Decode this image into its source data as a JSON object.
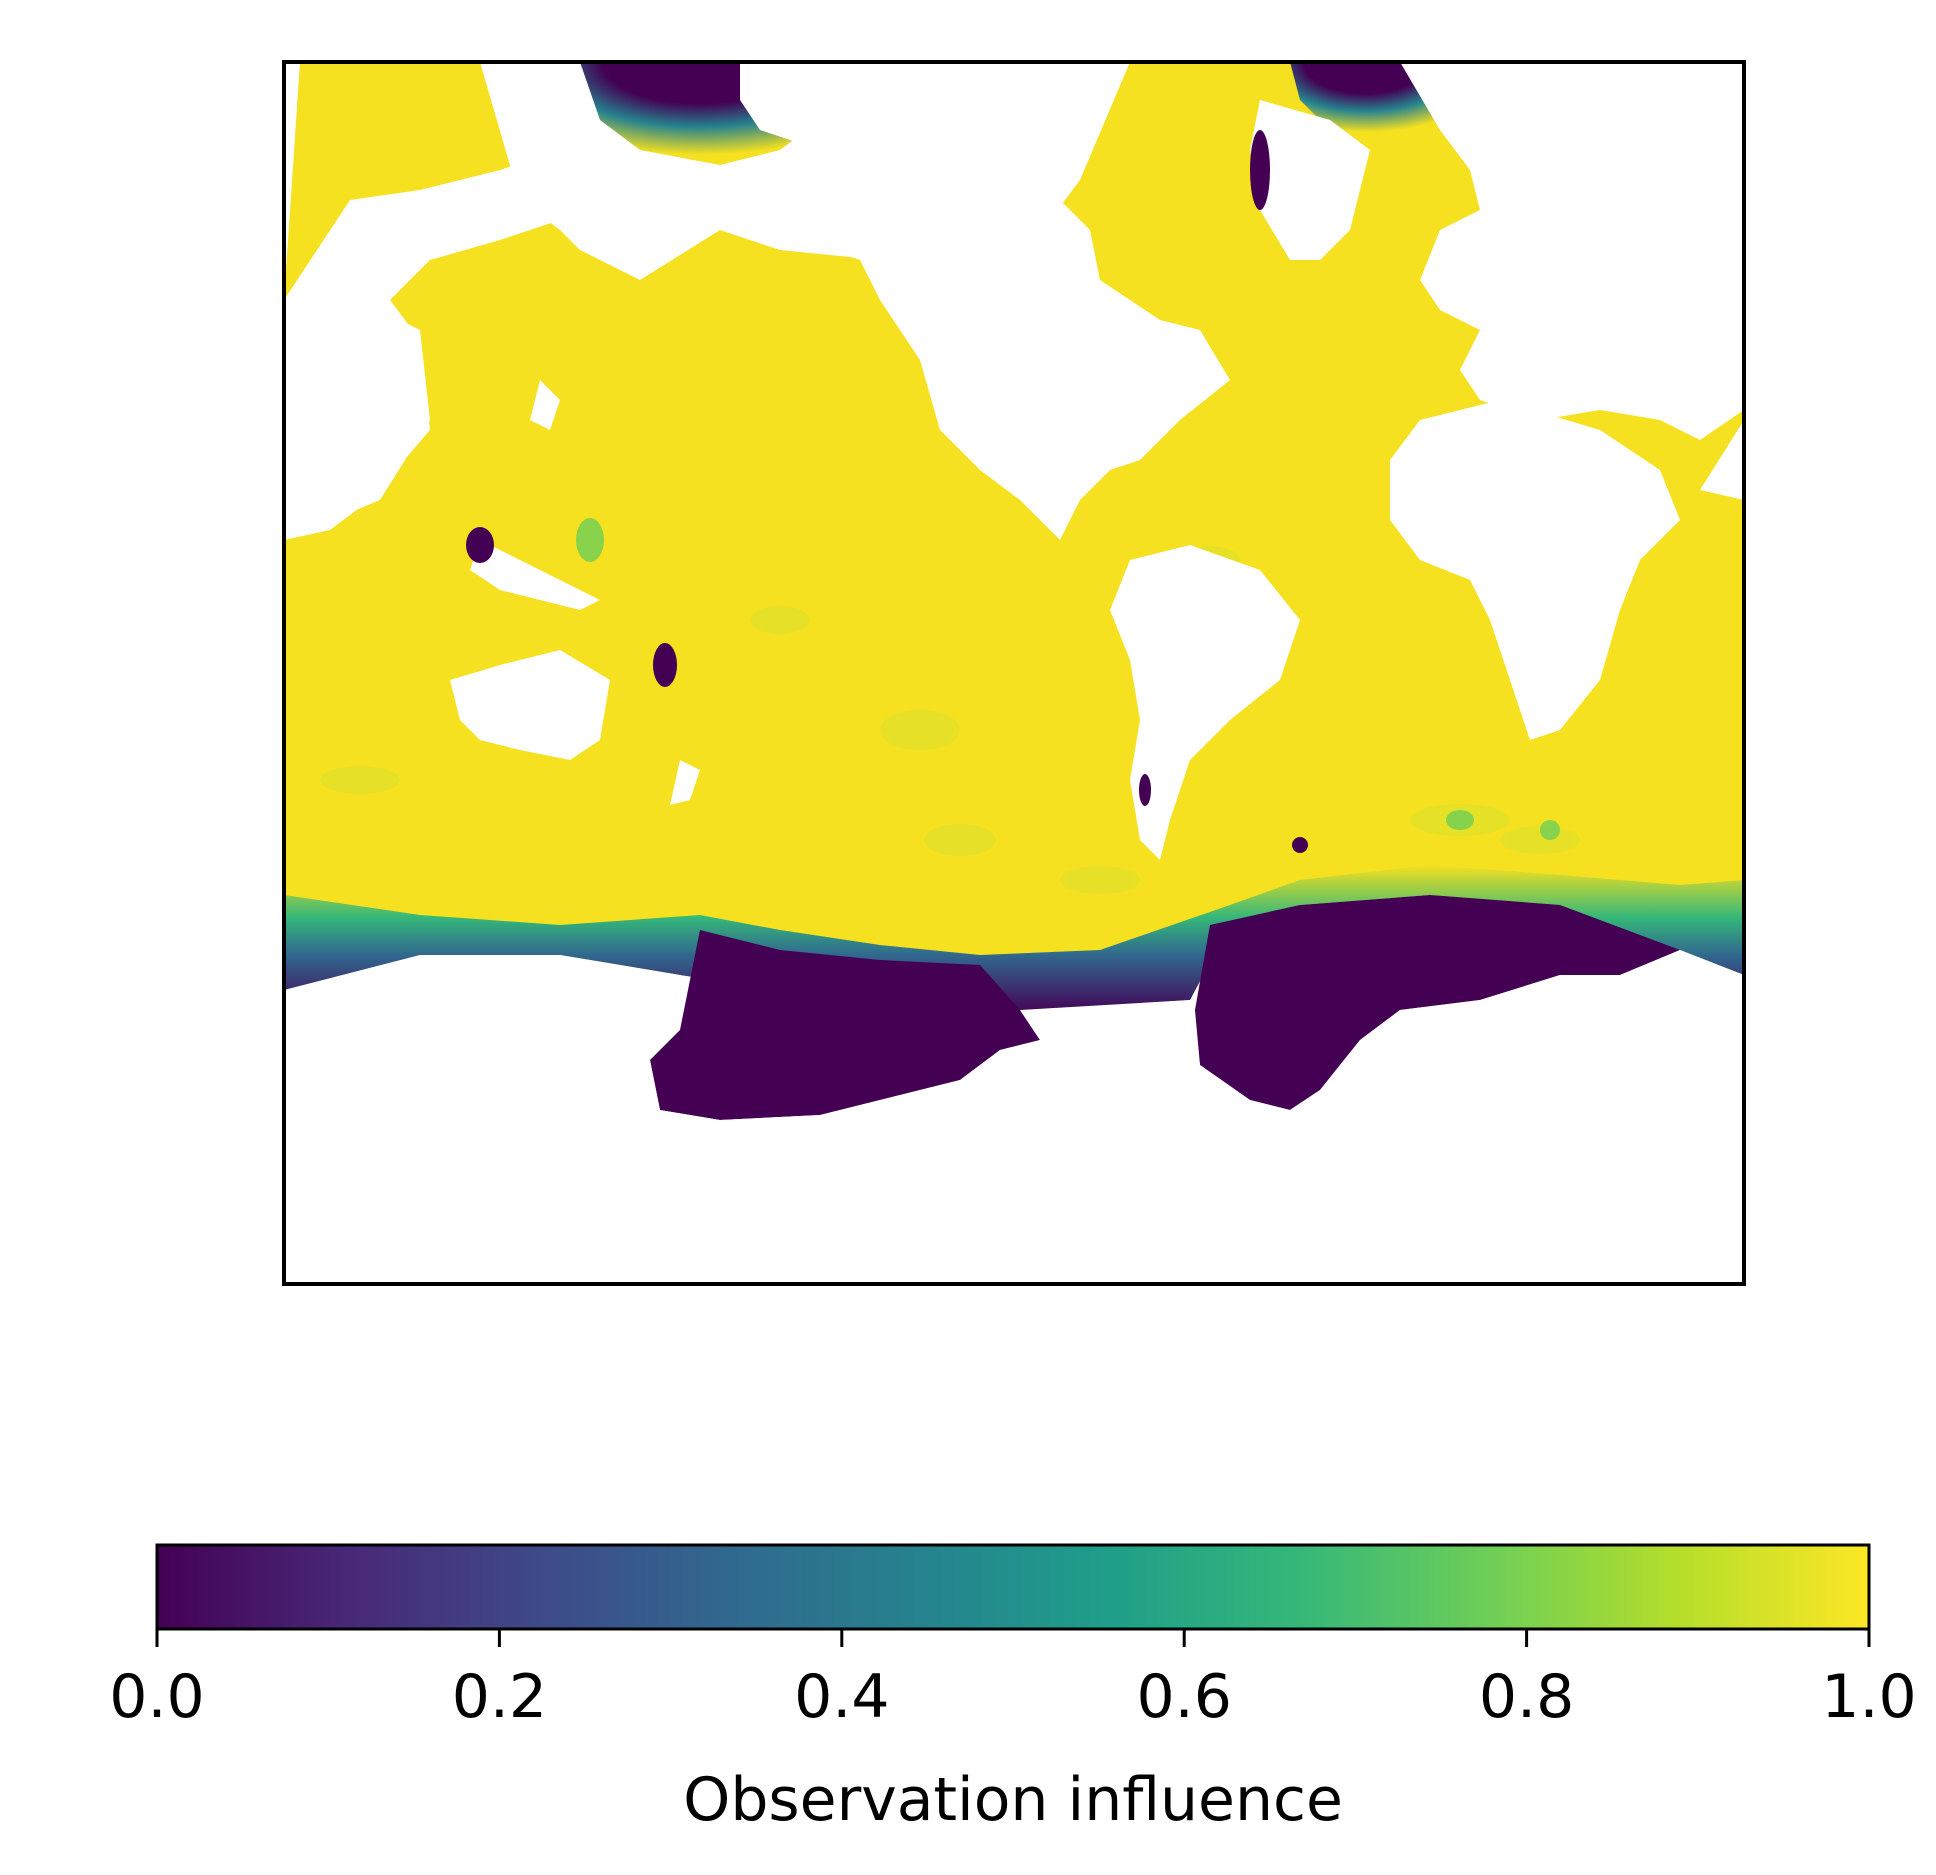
{
  "map": {
    "colormap": "viridis",
    "ocean_high_color": "#f5e11f",
    "ocean_low_color": "#440154",
    "land_color": "#ffffff"
  },
  "colorbar": {
    "label": "Observation influence",
    "ticks": [
      "0.0",
      "0.2",
      "0.4",
      "0.6",
      "0.8",
      "1.0"
    ],
    "range": [
      0.0,
      1.0
    ],
    "stops": [
      "#440154",
      "#482878",
      "#3e4989",
      "#31688e",
      "#26828e",
      "#1f9e89",
      "#35b779",
      "#6ece58",
      "#b5de2b",
      "#fde725"
    ]
  }
}
